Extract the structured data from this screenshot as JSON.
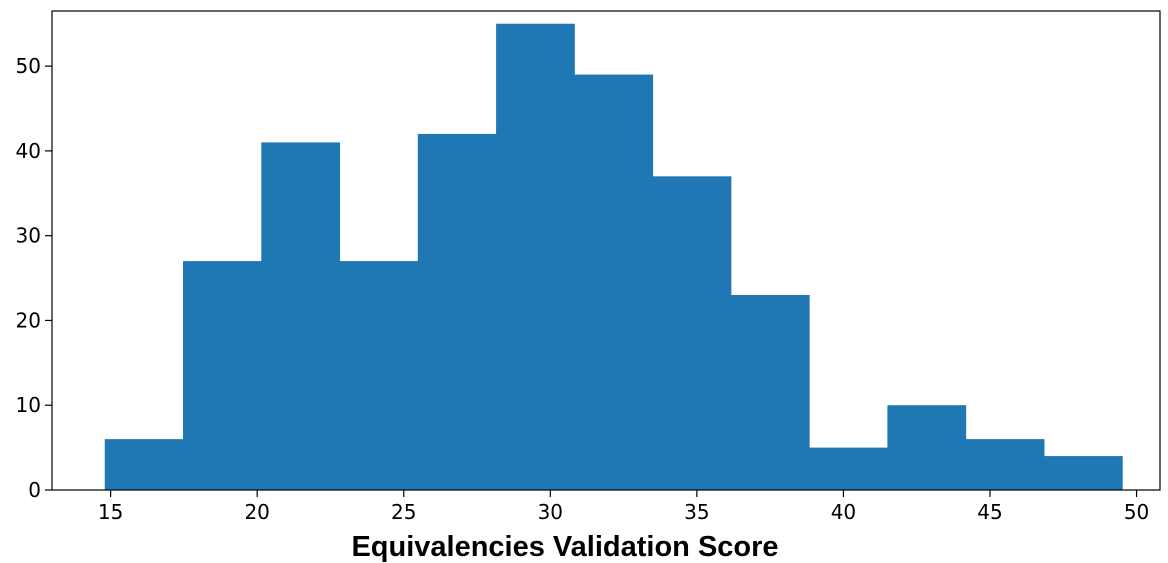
{
  "chart_data": {
    "type": "bar",
    "subtype": "histogram",
    "title": "",
    "xlabel": "Equivalencies Validation Score",
    "ylabel": "",
    "bar_color": "#1f77b4",
    "bin_edges": [
      14.8,
      17.47,
      20.14,
      22.81,
      25.48,
      28.15,
      30.82,
      33.49,
      36.16,
      38.83,
      41.5,
      44.17,
      46.84,
      49.51
    ],
    "values": [
      6,
      27,
      41,
      27,
      42,
      55,
      49,
      37,
      23,
      5,
      10,
      6,
      4
    ],
    "xlim": [
      13.0,
      50.8
    ],
    "ylim": [
      0,
      56.5
    ],
    "xticks": [
      15,
      20,
      25,
      30,
      35,
      40,
      45,
      50
    ],
    "yticks": [
      0,
      10,
      20,
      30,
      40,
      50
    ],
    "grid": false
  }
}
